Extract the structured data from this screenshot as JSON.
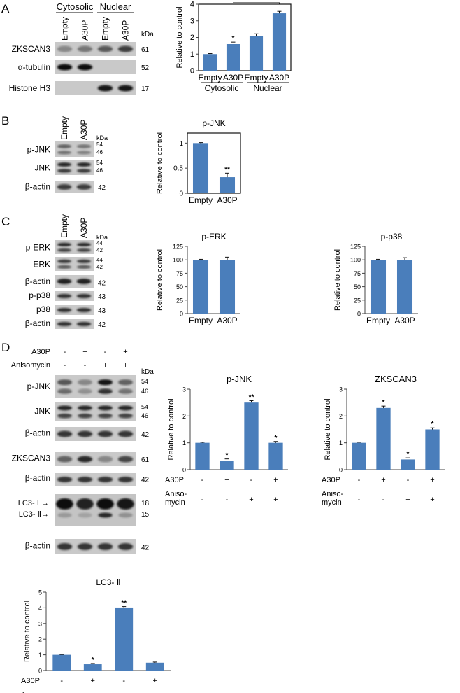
{
  "panels": {
    "A": {
      "letter": "A",
      "blot": {
        "groups": [
          "Cytosolic",
          "Nuclear"
        ],
        "lanes": [
          "Empty",
          "A30P",
          "Empty",
          "A30P"
        ],
        "kda_header": "kDa",
        "rows": [
          {
            "label": "ZKSCAN3",
            "kda": "61",
            "bands": [
              0.35,
              0.45,
              0.6,
              0.75
            ]
          },
          {
            "label": "α-tubulin",
            "kda": "52",
            "bands": [
              1.0,
              1.0,
              0,
              0
            ]
          },
          {
            "label": "Histone H3",
            "kda": "17",
            "bands": [
              0,
              0,
              0.95,
              0.95
            ]
          }
        ]
      }
    },
    "B": {
      "letter": "B",
      "blot": {
        "lanes": [
          "Empty",
          "A30P"
        ],
        "kda_header": "kDa",
        "rows": [
          {
            "label": "p-JNK",
            "kda": [
              "54",
              "46"
            ],
            "bands": [
              0.55,
              0.45
            ]
          },
          {
            "label": "JNK",
            "kda": [
              "54",
              "46"
            ],
            "bands": [
              0.9,
              0.9
            ]
          },
          {
            "label": "β-actin",
            "kda": "42",
            "bands": [
              0.75,
              0.75
            ]
          }
        ]
      }
    },
    "C": {
      "letter": "C",
      "blot": {
        "lanes": [
          "Empty",
          "A30P"
        ],
        "kda_header": "kDa",
        "rows": [
          {
            "label": "p-ERK",
            "kda": [
              "44",
              "42"
            ],
            "bands": [
              0.85,
              0.85
            ]
          },
          {
            "label": "ERK",
            "kda": [
              "44",
              "42"
            ],
            "bands": [
              0.75,
              0.75
            ]
          },
          {
            "label": "β-actin",
            "kda": "42",
            "bands": [
              0.9,
              0.9
            ]
          },
          {
            "label": "p-p38",
            "kda": "43",
            "bands": [
              0.8,
              0.8
            ]
          },
          {
            "label": "p38",
            "kda": "43",
            "bands": [
              0.8,
              0.8
            ]
          },
          {
            "label": "β-actin",
            "kda": "42",
            "bands": [
              0.8,
              0.8
            ]
          }
        ]
      }
    },
    "D": {
      "letter": "D",
      "blot": {
        "conditions": [
          {
            "label": "A30P",
            "signs": [
              "-",
              "+",
              "-",
              "+"
            ]
          },
          {
            "label": "Anisomycin",
            "signs": [
              "-",
              "-",
              "+",
              "+"
            ]
          }
        ],
        "kda_header": "kDa",
        "rows": [
          {
            "label": "p-JNK",
            "kda": [
              "54",
              "46"
            ],
            "bands": [
              0.6,
              0.35,
              0.95,
              0.55
            ]
          },
          {
            "label": "JNK",
            "kda": [
              "54",
              "46"
            ],
            "bands": [
              0.85,
              0.85,
              0.85,
              0.85
            ]
          },
          {
            "label": "β-actin",
            "kda": "42",
            "bands": [
              0.8,
              0.8,
              0.8,
              0.8
            ]
          },
          {
            "label": "ZKSCAN3",
            "kda": "61",
            "bands": [
              0.55,
              0.85,
              0.35,
              0.7
            ]
          },
          {
            "label": "β-actin",
            "kda": "42",
            "bands": [
              0.8,
              0.8,
              0.8,
              0.8
            ]
          },
          {
            "label_top": "LC3- Ⅰ",
            "label_bottom": "LC3- Ⅱ",
            "kda": [
              "18",
              "15"
            ],
            "bands": [
              1.0,
              0.9,
              1.0,
              0.95
            ]
          },
          {
            "label": "β-actin",
            "kda": "42",
            "bands": [
              0.8,
              0.8,
              0.8,
              0.8
            ]
          }
        ]
      }
    }
  },
  "chart_data": [
    {
      "id": "A",
      "type": "bar",
      "title": "",
      "categories": [
        "Empty",
        "A30P",
        "Empty",
        "A30P"
      ],
      "group_labels": [
        "Cytosolic",
        "Nuclear"
      ],
      "values": [
        1.0,
        1.6,
        2.1,
        3.45
      ],
      "errors": [
        0.03,
        0.12,
        0.12,
        0.12
      ],
      "annotations": [
        "",
        "*",
        "",
        ""
      ],
      "bracket": {
        "from": 1,
        "to": 3,
        "label": "*"
      },
      "ylabel": "Relative to control",
      "ylim": [
        0,
        4
      ],
      "yticks": [
        0,
        1,
        2,
        3,
        4
      ],
      "bar_color": "#4a7ebb"
    },
    {
      "id": "B",
      "type": "bar",
      "title": "p-JNK",
      "categories": [
        "Empty",
        "A30P"
      ],
      "values": [
        1.0,
        0.32
      ],
      "errors": [
        0.01,
        0.08
      ],
      "annotations": [
        "",
        "**"
      ],
      "ylabel": "Relative to control",
      "ylim": [
        0,
        1.2
      ],
      "yticks": [
        0,
        0.5,
        1
      ],
      "bar_color": "#4a7ebb"
    },
    {
      "id": "C1",
      "type": "bar",
      "title": "p-ERK",
      "categories": [
        "Empty",
        "A30P"
      ],
      "values": [
        100,
        100
      ],
      "errors": [
        1,
        5
      ],
      "annotations": [
        "",
        ""
      ],
      "ylabel": "Relative to control",
      "ylim": [
        0,
        125
      ],
      "yticks": [
        0,
        25,
        50,
        75,
        100,
        125
      ],
      "bar_color": "#4a7ebb"
    },
    {
      "id": "C2",
      "type": "bar",
      "title": "p-p38",
      "categories": [
        "Empty",
        "A30P"
      ],
      "values": [
        100,
        100
      ],
      "errors": [
        1,
        4
      ],
      "annotations": [
        "",
        ""
      ],
      "ylabel": "Relative to control",
      "ylim": [
        0,
        125
      ],
      "yticks": [
        0,
        25,
        50,
        75,
        100,
        125
      ],
      "bar_color": "#4a7ebb"
    },
    {
      "id": "D1",
      "type": "bar",
      "title": "p-JNK",
      "conditions": [
        {
          "label": "A30P",
          "signs": [
            "-",
            "+",
            "-",
            "+"
          ]
        },
        {
          "label": "Aniso-mycin",
          "signs": [
            "-",
            "-",
            "+",
            "+"
          ]
        }
      ],
      "values": [
        1.0,
        0.32,
        2.5,
        1.0
      ],
      "errors": [
        0.02,
        0.08,
        0.07,
        0.05
      ],
      "annotations": [
        "",
        "*",
        "**",
        "*"
      ],
      "ylabel": "Relative to control",
      "ylim": [
        0,
        3
      ],
      "yticks": [
        0,
        1,
        2,
        3
      ],
      "bar_color": "#4a7ebb"
    },
    {
      "id": "D2",
      "type": "bar",
      "title": "ZKSCAN3",
      "conditions": [
        {
          "label": "A30P",
          "signs": [
            "-",
            "+",
            "-",
            "+"
          ]
        },
        {
          "label": "Aniso-mycin",
          "signs": [
            "-",
            "-",
            "+",
            "+"
          ]
        }
      ],
      "values": [
        1.0,
        2.3,
        0.38,
        1.5
      ],
      "errors": [
        0.02,
        0.07,
        0.06,
        0.06
      ],
      "annotations": [
        "",
        "*",
        "*",
        "*"
      ],
      "ylabel": "Relative to control",
      "ylim": [
        0,
        3
      ],
      "yticks": [
        0,
        1,
        2,
        3
      ],
      "bar_color": "#4a7ebb"
    },
    {
      "id": "D3",
      "type": "bar",
      "title": "LC3- Ⅱ",
      "conditions": [
        {
          "label": "A30P",
          "signs": [
            "-",
            "+",
            "-",
            "+"
          ]
        },
        {
          "label": "Aniso-mycin",
          "signs": [
            "-",
            "-",
            "+",
            "+"
          ]
        }
      ],
      "values": [
        1.0,
        0.4,
        4.02,
        0.5
      ],
      "errors": [
        0.02,
        0.05,
        0.06,
        0.04
      ],
      "annotations": [
        "",
        "*",
        "**",
        ""
      ],
      "ylabel": "Relative to control",
      "ylim": [
        0,
        5
      ],
      "yticks": [
        0,
        1,
        2,
        3,
        4,
        5
      ],
      "bar_color": "#4a7ebb"
    }
  ]
}
